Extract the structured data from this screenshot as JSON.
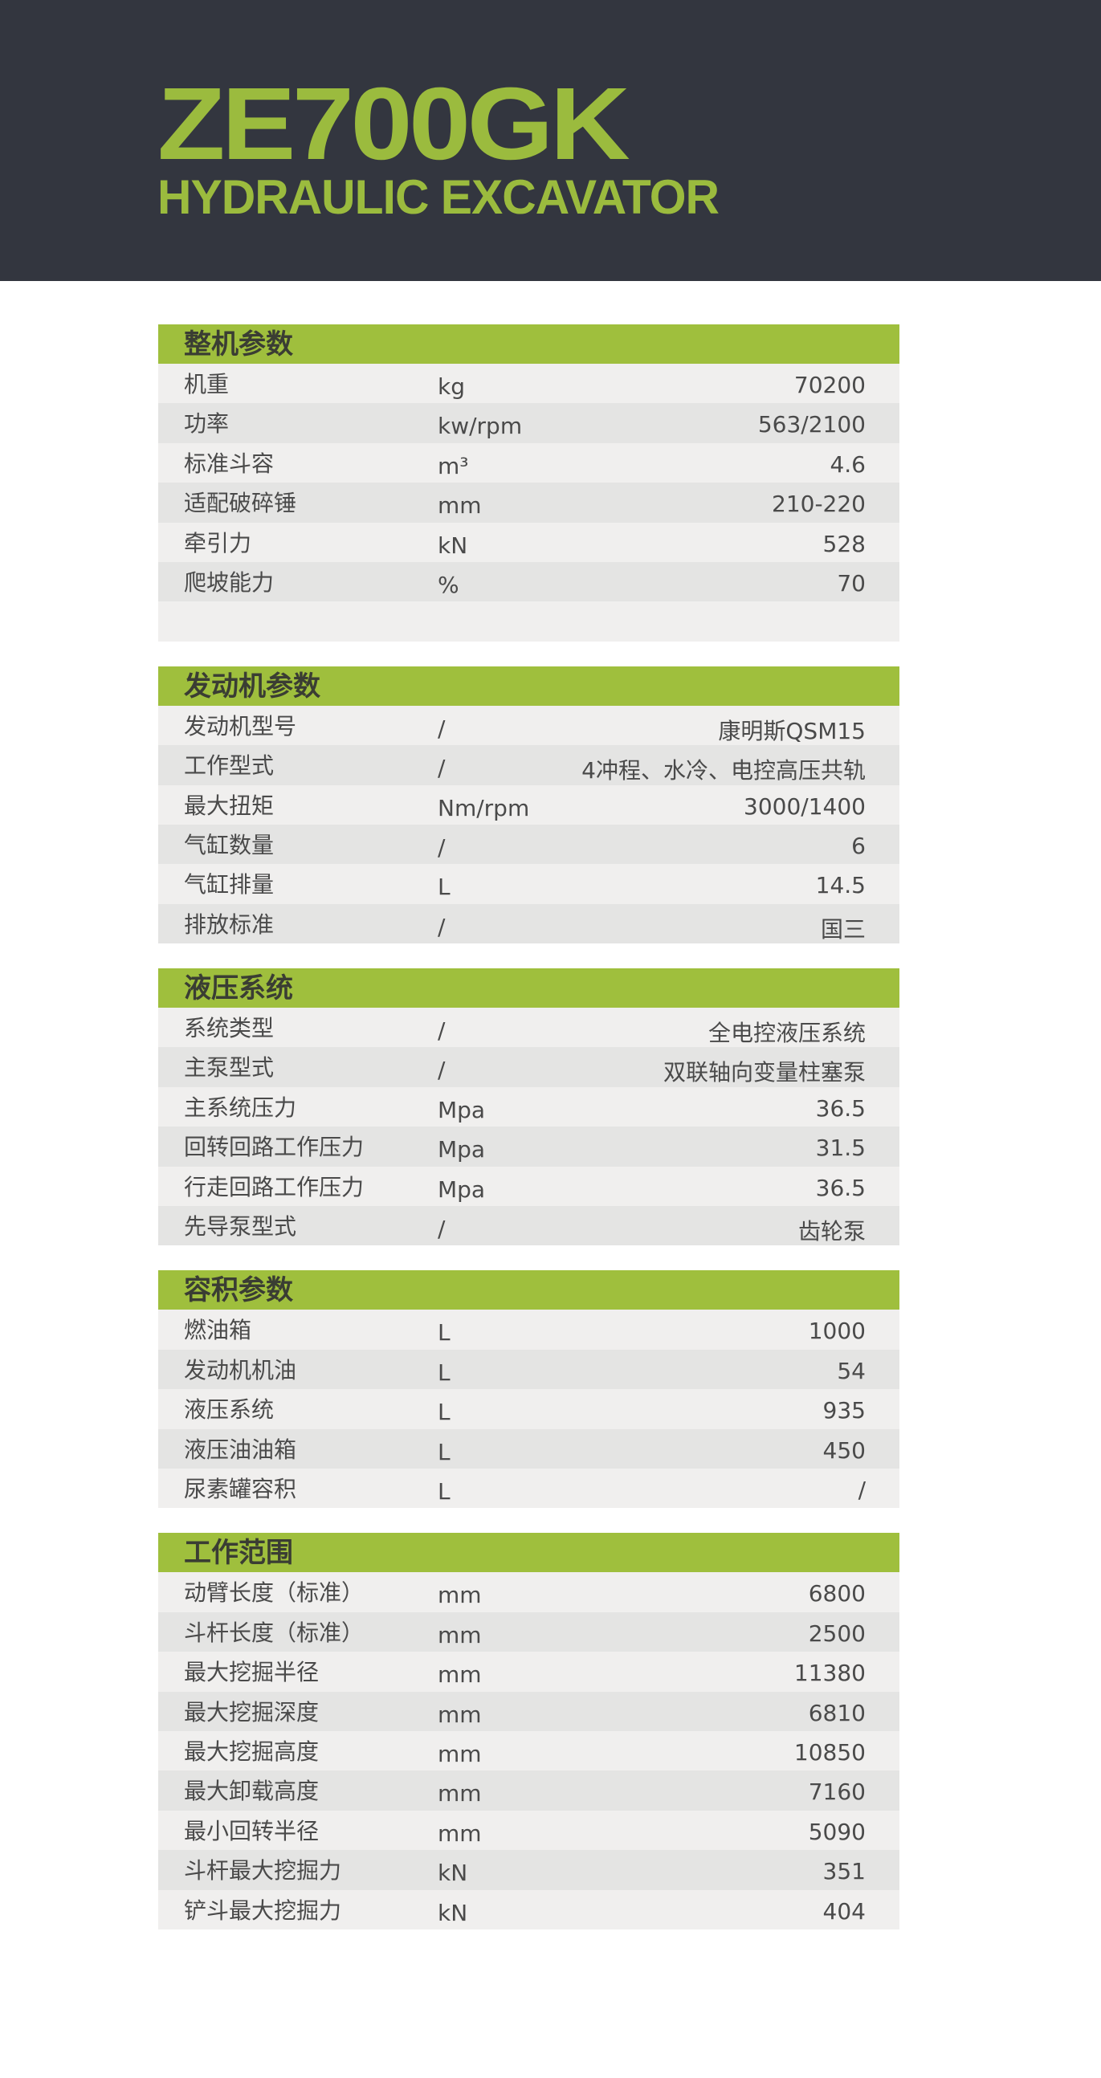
{
  "header": {
    "model": "ZE700GK",
    "subtitle": "HYDRAULIC EXCAVATOR"
  },
  "colors": {
    "banner": "#33363f",
    "accent": "#9fbf3d",
    "row_light": "#f0efee",
    "row_dark": "#e4e4e3"
  },
  "sections": [
    {
      "title": "整机参数",
      "blank_rows": 1,
      "rows": [
        {
          "label": "机重",
          "unit": "kg",
          "value": "70200"
        },
        {
          "label": "功率",
          "unit": "kw/rpm",
          "value": "563/2100"
        },
        {
          "label": "标准斗容",
          "unit": "m³",
          "value": "4.6"
        },
        {
          "label": "适配破碎锤",
          "unit": "mm",
          "value": "210-220"
        },
        {
          "label": "牵引力",
          "unit": "kN",
          "value": "528"
        },
        {
          "label": "爬坡能力",
          "unit": "%",
          "value": "70"
        }
      ]
    },
    {
      "title": "发动机参数",
      "rows": [
        {
          "label": "发动机型号",
          "unit": "/",
          "value": "康明斯QSM15"
        },
        {
          "label": "工作型式",
          "unit": "/",
          "value": "4冲程、水冷、电控高压共轨"
        },
        {
          "label": "最大扭矩",
          "unit": "Nm/rpm",
          "value": "3000/1400"
        },
        {
          "label": "气缸数量",
          "unit": "/",
          "value": "6"
        },
        {
          "label": "气缸排量",
          "unit": "L",
          "value": "14.5"
        },
        {
          "label": "排放标准",
          "unit": "/",
          "value": "国三"
        }
      ]
    },
    {
      "title": "液压系统",
      "rows": [
        {
          "label": "系统类型",
          "unit": "/",
          "value": "全电控液压系统"
        },
        {
          "label": "主泵型式",
          "unit": "/",
          "value": "双联轴向变量柱塞泵"
        },
        {
          "label": "主系统压力",
          "unit": "Mpa",
          "value": "36.5"
        },
        {
          "label": "回转回路工作压力",
          "unit": "Mpa",
          "value": "31.5"
        },
        {
          "label": "行走回路工作压力",
          "unit": "Mpa",
          "value": "36.5"
        },
        {
          "label": "先导泵型式",
          "unit": "/",
          "value": "齿轮泵"
        }
      ]
    },
    {
      "title": "容积参数",
      "rows": [
        {
          "label": "燃油箱",
          "unit": "L",
          "value": "1000"
        },
        {
          "label": "发动机机油",
          "unit": "L",
          "value": "54"
        },
        {
          "label": "液压系统",
          "unit": "L",
          "value": "935"
        },
        {
          "label": "液压油油箱",
          "unit": "L",
          "value": "450"
        },
        {
          "label": "尿素罐容积",
          "unit": "L",
          "value": "/"
        }
      ]
    },
    {
      "title": "工作范围",
      "rows": [
        {
          "label": "动臂长度（标准）",
          "unit": "mm",
          "value": "6800"
        },
        {
          "label": "斗杆长度（标准）",
          "unit": "mm",
          "value": "2500"
        },
        {
          "label": "最大挖掘半径",
          "unit": "mm",
          "value": "11380"
        },
        {
          "label": "最大挖掘深度",
          "unit": "mm",
          "value": "6810"
        },
        {
          "label": "最大挖掘高度",
          "unit": "mm",
          "value": "10850"
        },
        {
          "label": "最大卸载高度",
          "unit": "mm",
          "value": "7160"
        },
        {
          "label": "最小回转半径",
          "unit": "mm",
          "value": "5090"
        },
        {
          "label": "斗杆最大挖掘力",
          "unit": "kN",
          "value": "351"
        },
        {
          "label": "铲斗最大挖掘力",
          "unit": "kN",
          "value": "404"
        }
      ]
    }
  ]
}
